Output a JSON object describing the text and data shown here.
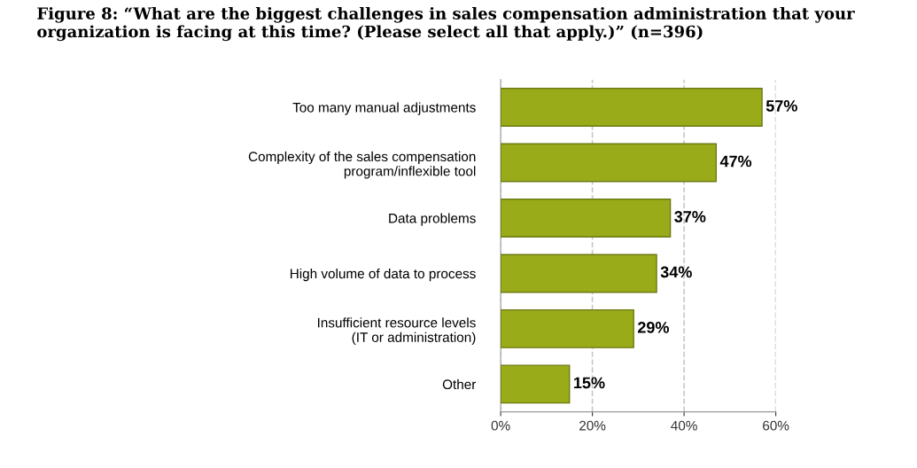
{
  "chart_data": {
    "type": "bar",
    "orientation": "horizontal",
    "title": "Figure 8: “What are the biggest challenges in sales compensation administration that your\norganization is facing at this time? (Please select all that apply.)” (n=396)",
    "categories": [
      "Too many manual adjustments",
      "Complexity of the sales compensation\nprogram/inflexible tool",
      "Data problems",
      "High volume of data to process",
      "Insufficient resource levels\n(IT or administration)",
      "Other"
    ],
    "values": [
      57,
      47,
      37,
      34,
      29,
      15
    ],
    "value_labels": [
      "57%",
      "47%",
      "37%",
      "34%",
      "29%",
      "15%"
    ],
    "color": "#9aab1a",
    "xlim": [
      0,
      60
    ],
    "xticks": [
      {
        "value": 0,
        "label": "0%"
      },
      {
        "value": 20,
        "label": "20%"
      },
      {
        "value": 40,
        "label": "40%"
      },
      {
        "value": 60,
        "label": "60%"
      }
    ],
    "grid": "x"
  }
}
